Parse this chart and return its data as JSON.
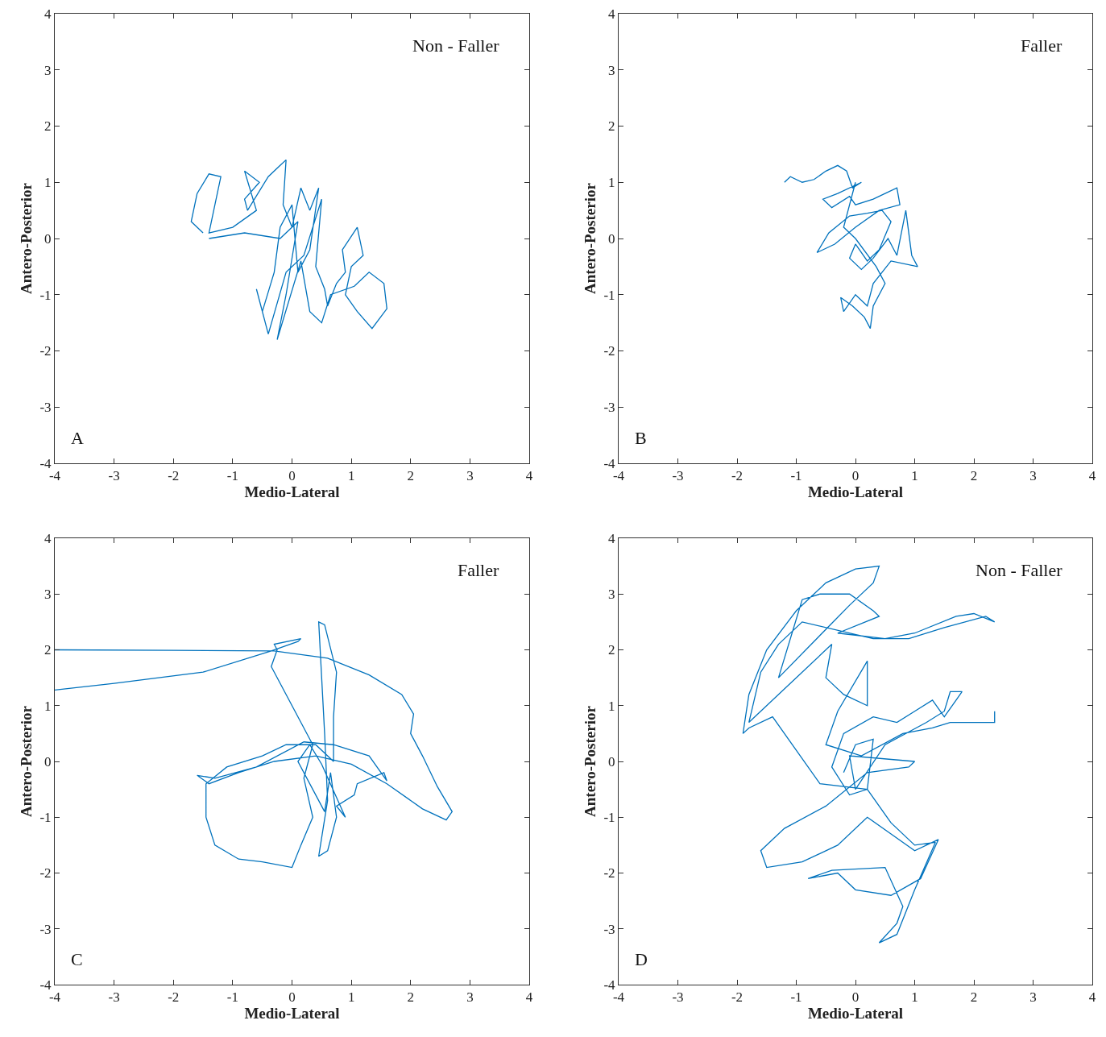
{
  "chart_data": [
    {
      "type": "line",
      "xlabel": "Medio-Lateral",
      "ylabel": "Antero-Posterior",
      "xlim": [
        -4,
        4
      ],
      "ylim": [
        -4,
        4
      ],
      "xticks": [
        -4,
        -3,
        -2,
        -1,
        0,
        1,
        2,
        3,
        4
      ],
      "yticks": [
        -4,
        -3,
        -2,
        -1,
        0,
        1,
        2,
        3,
        4
      ],
      "legend": false,
      "line_style": "solid",
      "annotations": [
        "Non - Faller",
        "A"
      ],
      "series": [
        {
          "color": "#0072bd",
          "x": [
            -1.5,
            -1.7,
            -1.6,
            -1.4,
            -1.2,
            -1.3,
            -1.4,
            -1.0,
            -0.6,
            -0.8,
            -0.55,
            -0.8,
            -0.75,
            -0.4,
            -0.2,
            -0.1,
            -0.15,
            0.0,
            0.15,
            0.3,
            0.45,
            0.3,
            0.1,
            0.0,
            -0.2,
            -0.3,
            -0.5,
            -0.6,
            -0.4,
            -0.1,
            0.2,
            0.5,
            0.4,
            0.55,
            0.6,
            0.75,
            0.9,
            0.85,
            1.1,
            1.2,
            1.0,
            0.9,
            1.1,
            1.35,
            1.6,
            1.55,
            1.3,
            1.05,
            0.65,
            0.5,
            0.3,
            0.15,
            -0.25,
            -0.1,
            0.1,
            -0.2,
            -0.8,
            -1.4
          ],
          "values": [
            0.1,
            0.3,
            0.8,
            1.15,
            1.1,
            0.6,
            0.1,
            0.2,
            0.5,
            1.2,
            1.0,
            0.7,
            0.5,
            1.1,
            1.3,
            1.4,
            0.6,
            0.2,
            0.9,
            0.5,
            0.9,
            -0.2,
            -0.6,
            0.6,
            0.2,
            -0.6,
            -1.3,
            -0.9,
            -1.7,
            -0.6,
            -0.3,
            0.7,
            -0.5,
            -0.9,
            -1.2,
            -0.8,
            -0.6,
            -0.2,
            0.2,
            -0.3,
            -0.5,
            -1.0,
            -1.3,
            -1.6,
            -1.25,
            -0.8,
            -0.6,
            -0.85,
            -1.0,
            -1.5,
            -1.3,
            -0.4,
            -1.8,
            -1.0,
            0.3,
            0.0,
            0.1,
            0.0
          ]
        }
      ]
    },
    {
      "type": "line",
      "xlabel": "Medio-Lateral",
      "ylabel": "Antero-Posterior",
      "xlim": [
        -4,
        4
      ],
      "ylim": [
        -4,
        4
      ],
      "xticks": [
        -4,
        -3,
        -2,
        -1,
        0,
        1,
        2,
        3,
        4
      ],
      "yticks": [
        -4,
        -3,
        -2,
        -1,
        0,
        1,
        2,
        3,
        4
      ],
      "legend": false,
      "line_style": "solid",
      "annotations": [
        "Faller",
        "B"
      ],
      "series": [
        {
          "color": "#0072bd",
          "x": [
            -1.2,
            -1.1,
            -0.9,
            -0.7,
            -0.5,
            -0.3,
            -0.15,
            -0.05,
            0.1,
            -0.3,
            -0.55,
            -0.4,
            -0.1,
            0.0,
            0.3,
            0.5,
            0.7,
            0.75,
            0.4,
            0.0,
            -0.35,
            -0.65,
            -0.45,
            -0.1,
            0.2,
            0.45,
            0.6,
            0.4,
            0.2,
            0.0,
            -0.1,
            0.1,
            0.3,
            0.55,
            0.7,
            0.85,
            0.95,
            1.05,
            0.6,
            0.3,
            0.2,
            0.0,
            -0.2,
            -0.25,
            -0.05,
            0.15,
            0.25,
            0.3,
            0.5,
            0.35,
            0.0,
            -0.2,
            0.0
          ],
          "values": [
            1.0,
            1.1,
            1.0,
            1.05,
            1.2,
            1.3,
            1.2,
            0.9,
            1.0,
            0.8,
            0.7,
            0.55,
            0.75,
            0.6,
            0.7,
            0.8,
            0.9,
            0.6,
            0.5,
            0.2,
            -0.1,
            -0.25,
            0.1,
            0.4,
            0.45,
            0.5,
            0.3,
            -0.2,
            -0.4,
            -0.1,
            -0.35,
            -0.55,
            -0.35,
            0.0,
            -0.3,
            0.5,
            -0.3,
            -0.5,
            -0.4,
            -0.8,
            -1.2,
            -1.0,
            -1.3,
            -1.05,
            -1.2,
            -1.4,
            -1.6,
            -1.2,
            -0.8,
            -0.5,
            0.0,
            0.2,
            1.0
          ]
        }
      ]
    },
    {
      "type": "line",
      "xlabel": "Medio-Lateral",
      "ylabel": "Antero-Posterior",
      "xlim": [
        -4,
        4
      ],
      "ylim": [
        -4,
        4
      ],
      "xticks": [
        -4,
        -3,
        -2,
        -1,
        0,
        1,
        2,
        3,
        4
      ],
      "yticks": [
        -4,
        -3,
        -2,
        -1,
        0,
        1,
        2,
        3,
        4
      ],
      "legend": false,
      "line_style": "solid",
      "annotations": [
        "Faller",
        "C"
      ],
      "series": [
        {
          "color": "#0072bd",
          "x": [
            -4.0,
            -2.0,
            -0.3,
            0.6,
            1.3,
            1.85,
            2.05,
            2.0,
            2.2,
            2.45,
            2.7,
            2.6,
            2.2,
            1.6,
            1.0,
            0.4,
            -0.3,
            -0.9,
            -1.4,
            -1.6,
            -1.3,
            -0.6,
            0.2,
            0.7,
            1.3,
            1.6,
            1.55,
            1.1,
            1.05,
            0.75,
            0.9,
            0.5,
            0.3,
            0.1,
            0.55,
            0.65,
            0.75,
            0.6,
            0.45,
            0.6,
            0.55,
            0.5,
            0.45,
            0.55,
            0.75,
            0.7,
            0.7,
            0.4,
            -0.1,
            -0.5,
            -1.1,
            -1.45,
            -1.45,
            -1.3,
            -0.9,
            -0.5,
            0.0,
            0.15,
            0.35,
            0.2,
            0.35,
            0.0,
            -0.35,
            -0.25,
            -0.3,
            0.15,
            0.1,
            -0.35,
            -1.5,
            -3.0,
            -4.0
          ],
          "values": [
            2.0,
            1.99,
            1.98,
            1.85,
            1.55,
            1.2,
            0.85,
            0.5,
            0.1,
            -0.45,
            -0.9,
            -1.05,
            -0.85,
            -0.4,
            -0.05,
            0.1,
            0.0,
            -0.2,
            -0.4,
            -0.25,
            -0.3,
            -0.1,
            0.35,
            0.3,
            0.1,
            -0.35,
            -0.2,
            -0.4,
            -0.6,
            -0.8,
            -1.0,
            -0.05,
            0.3,
            0.0,
            -0.9,
            -0.2,
            -1.0,
            -1.6,
            -1.7,
            -0.7,
            0.5,
            1.5,
            2.5,
            2.45,
            1.6,
            0.8,
            0.0,
            0.3,
            0.3,
            0.1,
            -0.1,
            -0.4,
            -1.0,
            -1.5,
            -1.75,
            -1.8,
            -1.9,
            -1.5,
            -1.0,
            -0.3,
            0.3,
            1.0,
            1.7,
            2.0,
            2.1,
            2.2,
            2.15,
            1.98,
            1.6,
            1.4,
            1.28
          ]
        }
      ]
    },
    {
      "type": "line",
      "xlabel": "Medio-Lateral",
      "ylabel": "Antero-Posterior",
      "xlim": [
        -4,
        4
      ],
      "ylim": [
        -4,
        4
      ],
      "xticks": [
        -4,
        -3,
        -2,
        -1,
        0,
        1,
        2,
        3,
        4
      ],
      "yticks": [
        -4,
        -3,
        -2,
        -1,
        0,
        1,
        2,
        3,
        4
      ],
      "legend": false,
      "line_style": "solid",
      "annotations": [
        "Non - Faller",
        "D"
      ],
      "series": [
        {
          "color": "#0072bd",
          "x": [
            -0.2,
            0.0,
            0.3,
            0.2,
            -0.1,
            -0.4,
            -0.2,
            0.3,
            0.7,
            1.0,
            1.3,
            1.5,
            1.7,
            1.8,
            1.6,
            1.5,
            1.2,
            0.5,
            0.0,
            -0.1,
            1.0,
            0.9,
            0.2,
            -0.5,
            -1.2,
            -1.6,
            -1.5,
            -0.9,
            -0.3,
            0.2,
            0.6,
            1.0,
            1.4,
            1.1,
            0.6,
            0.0,
            -0.3,
            -0.8,
            -0.4,
            0.5,
            0.8,
            0.7,
            0.4,
            0.7,
            1.0,
            1.35,
            1.0,
            0.6,
            0.2,
            -0.6,
            -1.4,
            -1.8,
            -1.9,
            -1.8,
            -1.5,
            -1.0,
            -0.5,
            0.0,
            0.4,
            0.3,
            -0.1,
            -1.3,
            -0.9,
            -0.6,
            -0.1,
            0.3,
            0.4,
            -0.3,
            0.5,
            1.0,
            1.7,
            2.0,
            2.35,
            2.2,
            1.5,
            0.9,
            0.3,
            -0.9,
            -1.3,
            -1.6,
            -1.8,
            -0.4,
            -0.5,
            -0.2,
            0.2,
            0.2,
            -0.3,
            -0.5,
            0.1,
            0.8,
            1.3,
            1.6,
            2.35,
            2.35
          ],
          "values": [
            -0.2,
            0.3,
            0.4,
            -0.5,
            -0.6,
            -0.1,
            0.5,
            0.8,
            0.7,
            0.9,
            1.1,
            0.8,
            1.1,
            1.25,
            1.25,
            0.9,
            0.7,
            0.3,
            -0.5,
            0.1,
            0.0,
            -0.1,
            -0.2,
            -0.8,
            -1.2,
            -1.6,
            -1.9,
            -1.8,
            -1.5,
            -1.0,
            -1.3,
            -1.6,
            -1.4,
            -2.1,
            -2.4,
            -2.3,
            -2.0,
            -2.1,
            -1.95,
            -1.9,
            -2.6,
            -2.9,
            -3.25,
            -3.1,
            -2.3,
            -1.45,
            -1.5,
            -1.1,
            -0.5,
            -0.4,
            0.8,
            0.6,
            0.5,
            1.2,
            2.0,
            2.7,
            3.2,
            3.45,
            3.5,
            3.2,
            2.8,
            1.5,
            2.9,
            3.0,
            3.0,
            2.7,
            2.6,
            2.3,
            2.2,
            2.3,
            2.6,
            2.65,
            2.5,
            2.6,
            2.4,
            2.2,
            2.2,
            2.5,
            2.1,
            1.6,
            0.7,
            2.1,
            1.5,
            1.2,
            1.0,
            1.8,
            0.9,
            0.3,
            0.1,
            0.5,
            0.6,
            0.7,
            0.7,
            0.9
          ]
        }
      ]
    }
  ]
}
